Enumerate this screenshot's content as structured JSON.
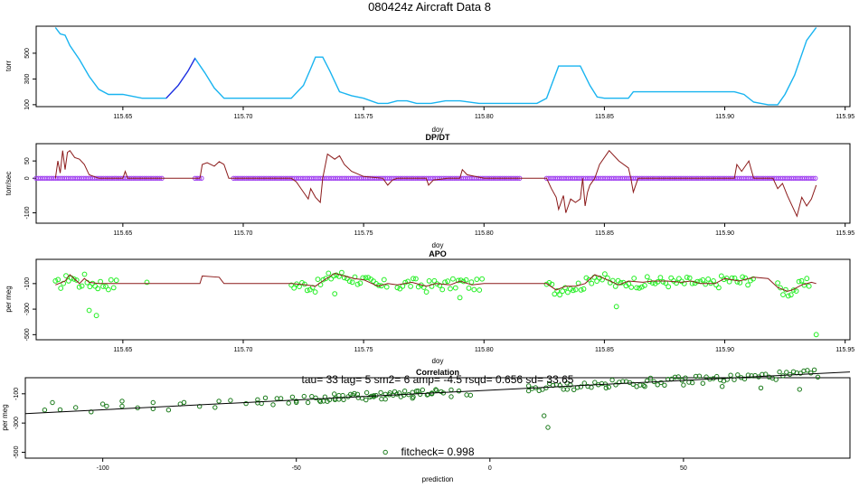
{
  "page_title": "080424z   Aircraft Data 8",
  "colors": {
    "pressure": "#19b4f0",
    "pressure_segment": "#2a20e0",
    "dpdt_line": "#8b1a1a",
    "dpdt_points": "#a040f0",
    "apo_line": "#8b1a1a",
    "apo_points": "#22ee22",
    "corr_points": "#1a7a1a",
    "fit_line": "#000000"
  },
  "chart_data": [
    {
      "id": "pressure",
      "type": "line",
      "title": "",
      "xlabel": "doy",
      "ylabel": "torr",
      "xlim": [
        115.614,
        115.952
      ],
      "ylim": [
        85,
        710
      ],
      "xticks": [
        115.65,
        115.7,
        115.75,
        115.8,
        115.85,
        115.9,
        115.95
      ],
      "xtick_labels": [
        "115.65",
        "115.70",
        "115.75",
        "115.80",
        "115.85",
        "115.90",
        "115.95"
      ],
      "yticks": [
        100,
        300,
        500
      ],
      "ytick_labels": [
        "100",
        "300",
        "500"
      ],
      "series": [
        {
          "name": "pressure",
          "x": [
            115.622,
            115.624,
            115.626,
            115.628,
            115.632,
            115.636,
            115.64,
            115.644,
            115.646,
            115.65,
            115.658,
            115.664,
            115.668,
            115.673,
            115.677,
            115.68,
            115.684,
            115.688,
            115.692,
            115.7,
            115.712,
            115.72,
            115.725,
            115.728,
            115.73,
            115.733,
            115.736,
            115.74,
            115.745,
            115.75,
            115.756,
            115.76,
            115.764,
            115.768,
            115.772,
            115.778,
            115.784,
            115.79,
            115.798,
            115.806,
            115.812,
            115.818,
            115.822,
            115.826,
            115.828,
            115.831,
            115.834,
            115.84,
            115.844,
            115.847,
            115.85,
            115.856,
            115.86,
            115.862,
            115.87,
            115.88,
            115.89,
            115.9,
            115.904,
            115.908,
            115.912,
            115.918,
            115.922,
            115.925,
            115.929,
            115.934,
            115.938
          ],
          "y": [
            700,
            650,
            640,
            560,
            450,
            320,
            220,
            180,
            180,
            180,
            150,
            150,
            150,
            250,
            360,
            460,
            350,
            230,
            150,
            150,
            150,
            150,
            250,
            380,
            470,
            470,
            360,
            200,
            170,
            150,
            110,
            110,
            130,
            130,
            110,
            110,
            130,
            130,
            110,
            110,
            110,
            110,
            110,
            150,
            250,
            400,
            400,
            400,
            250,
            160,
            150,
            150,
            150,
            200,
            200,
            200,
            200,
            200,
            200,
            180,
            120,
            100,
            100,
            180,
            330,
            600,
            700
          ]
        },
        {
          "name": "segment",
          "x": [
            115.668,
            115.673,
            115.677,
            115.68
          ],
          "y": [
            150,
            250,
            360,
            460
          ]
        }
      ]
    },
    {
      "id": "dpdt",
      "type": "line",
      "title": "DP/DT",
      "xlabel": "doy",
      "ylabel": "torr/sec",
      "xlim": [
        115.614,
        115.952
      ],
      "ylim": [
        -130,
        100
      ],
      "xticks": [
        115.65,
        115.7,
        115.75,
        115.8,
        115.85,
        115.9,
        115.95
      ],
      "xtick_labels": [
        "115.65",
        "115.70",
        "115.75",
        "115.80",
        "115.85",
        "115.90",
        "115.95"
      ],
      "yticks": [
        -100,
        0,
        50
      ],
      "ytick_labels": [
        "-100",
        "0",
        "50"
      ],
      "series": [
        {
          "name": "dpdt",
          "x": [
            115.622,
            115.623,
            115.624,
            115.625,
            115.626,
            115.627,
            115.628,
            115.63,
            115.632,
            115.634,
            115.636,
            115.638,
            115.64,
            115.645,
            115.65,
            115.651,
            115.652,
            115.655,
            115.668,
            115.682,
            115.683,
            115.685,
            115.688,
            115.69,
            115.692,
            115.694,
            115.7,
            115.72,
            115.722,
            115.725,
            115.727,
            115.728,
            115.73,
            115.732,
            115.733,
            115.735,
            115.738,
            115.74,
            115.742,
            115.745,
            115.75,
            115.758,
            115.76,
            115.762,
            115.764,
            115.77,
            115.776,
            115.777,
            115.779,
            115.785,
            115.79,
            115.791,
            115.793,
            115.8,
            115.815,
            115.826,
            115.828,
            115.83,
            115.831,
            115.833,
            115.834,
            115.836,
            115.838,
            115.84,
            115.841,
            115.842,
            115.843,
            115.844,
            115.846,
            115.848,
            115.852,
            115.856,
            115.86,
            115.861,
            115.862,
            115.864,
            115.88,
            115.904,
            115.905,
            115.907,
            115.91,
            115.912,
            115.92,
            115.922,
            115.924,
            115.926,
            115.928,
            115.93,
            115.932,
            115.934,
            115.936,
            115.938
          ],
          "y": [
            0,
            50,
            15,
            80,
            25,
            75,
            80,
            60,
            55,
            40,
            10,
            5,
            0,
            0,
            0,
            20,
            0,
            0,
            0,
            0,
            40,
            45,
            35,
            48,
            40,
            0,
            0,
            0,
            -10,
            -40,
            -60,
            -30,
            -55,
            -70,
            0,
            70,
            55,
            65,
            40,
            20,
            5,
            0,
            -20,
            -5,
            0,
            0,
            0,
            -20,
            -5,
            0,
            0,
            25,
            10,
            0,
            0,
            0,
            -30,
            -55,
            -90,
            -50,
            -100,
            -60,
            -70,
            -60,
            0,
            -80,
            -40,
            -20,
            0,
            40,
            80,
            50,
            30,
            0,
            -40,
            0,
            0,
            0,
            40,
            20,
            50,
            0,
            0,
            -30,
            -15,
            -50,
            -80,
            -110,
            -55,
            -80,
            -60,
            -20
          ]
        },
        {
          "name": "points",
          "ranges": [
            [
              115.614,
              115.667
            ],
            [
              115.68,
              115.683
            ],
            [
              115.696,
              115.815
            ],
            [
              115.826,
              115.938
            ]
          ],
          "y": [
            0
          ]
        }
      ]
    },
    {
      "id": "apo",
      "type": "scatter",
      "title": "APO",
      "xlabel": "doy",
      "ylabel": "per meg",
      "xlim": [
        115.614,
        115.952
      ],
      "ylim": [
        -540,
        90
      ],
      "xticks": [
        115.65,
        115.7,
        115.75,
        115.8,
        115.85,
        115.9,
        115.95
      ],
      "xtick_labels": [
        "115.65",
        "115.70",
        "115.75",
        "115.80",
        "115.85",
        "115.90",
        "115.95"
      ],
      "yticks": [
        -500,
        -300,
        -100
      ],
      "ytick_labels": [
        "-500",
        "-300",
        "-100"
      ],
      "series": [
        {
          "name": "apo",
          "x": [
            115.622,
            115.626,
            115.628,
            115.632,
            115.634,
            115.636,
            115.64,
            115.65,
            115.668,
            115.682,
            115.683,
            115.69,
            115.692,
            115.7,
            115.72,
            115.726,
            115.73,
            115.733,
            115.738,
            115.742,
            115.746,
            115.75,
            115.756,
            115.76,
            115.764,
            115.77,
            115.776,
            115.78,
            115.786,
            115.79,
            115.795,
            115.8,
            115.812,
            115.826,
            115.83,
            115.834,
            115.838,
            115.842,
            115.846,
            115.85,
            115.856,
            115.86,
            115.866,
            115.87,
            115.876,
            115.882,
            115.886,
            115.89,
            115.896,
            115.9,
            115.906,
            115.912,
            115.918,
            115.922,
            115.926,
            115.928,
            115.932,
            115.936,
            115.938
          ],
          "y": [
            -110,
            -80,
            -30,
            -100,
            -60,
            -90,
            -100,
            -100,
            -100,
            -100,
            -40,
            -50,
            -100,
            -100,
            -100,
            -110,
            -120,
            -80,
            -20,
            -40,
            -60,
            -70,
            -120,
            -100,
            -110,
            -90,
            -120,
            -100,
            -110,
            -80,
            -110,
            -100,
            -100,
            -100,
            -150,
            -120,
            -120,
            -100,
            -30,
            -60,
            -110,
            -80,
            -90,
            -80,
            -80,
            -90,
            -80,
            -100,
            -100,
            -60,
            -80,
            -50,
            -60,
            -130,
            -160,
            -150,
            -110,
            -90,
            -100
          ]
        },
        {
          "name": "points",
          "x": [
            115.636,
            115.639,
            115.66,
            115.935,
            115.938,
            115.738,
            115.79,
            115.855
          ],
          "y": [
            -310,
            -350,
            -90,
            -120,
            -500,
            -180,
            -210,
            -280
          ]
        }
      ]
    },
    {
      "id": "correlation",
      "type": "scatter",
      "title": "Correlation",
      "xlabel": "prediction",
      "ylabel": "per meg",
      "xlim": [
        -120,
        93
      ],
      "ylim": [
        -540,
        10
      ],
      "xticks": [
        -100,
        -50,
        0,
        50
      ],
      "xtick_labels": [
        "-100",
        "-50",
        "0",
        "50"
      ],
      "yticks": [
        -500,
        -300,
        -100
      ],
      "ytick_labels": [
        "-500",
        "-300",
        "-100"
      ],
      "fit": {
        "slope": 1.34,
        "intercept": -75
      },
      "points": {
        "x": [
          -113,
          -100,
          -95,
          -87,
          -80,
          -70,
          -60,
          -50,
          -40,
          -30,
          -25,
          -20,
          -15,
          -10,
          -5,
          10,
          20,
          30,
          40,
          50,
          60,
          70,
          80,
          -27,
          14,
          15
        ],
        "y": [
          -160,
          -170,
          -150,
          -160,
          -170,
          -150,
          -140,
          -150,
          -140,
          -120,
          -110,
          -130,
          -100,
          -120,
          -110,
          -80,
          -70,
          -60,
          -50,
          -40,
          -50,
          -60,
          -70,
          -500,
          -250,
          -330
        ]
      },
      "annotations": {
        "stats": "tau= 33 lag= 5 sm2= 6 amp= -4.5 rsqd= 0.656 sd= 33.65",
        "fitcheck": "fitcheck= 0.998"
      }
    }
  ]
}
